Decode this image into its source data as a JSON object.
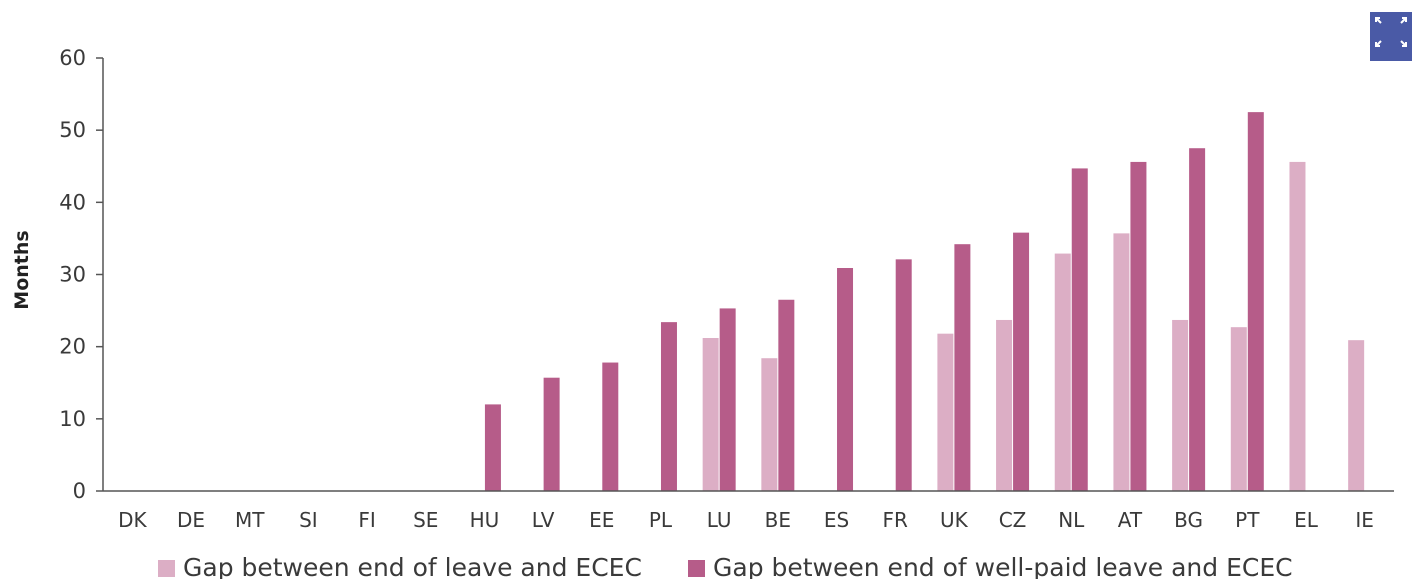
{
  "chart_data": {
    "type": "bar",
    "ylabel": "Months",
    "xlabel": "",
    "ylim": [
      0,
      60
    ],
    "yticks": [
      0,
      10,
      20,
      30,
      40,
      50,
      60
    ],
    "grid": false,
    "legend_position": "bottom",
    "categories": [
      "DK",
      "DE",
      "MT",
      "SI",
      "FI",
      "SE",
      "HU",
      "LV",
      "EE",
      "PL",
      "LU",
      "BE",
      "ES",
      "FR",
      "UK",
      "CZ",
      "NL",
      "AT",
      "BG",
      "PT",
      "EL",
      "IE"
    ],
    "series": [
      {
        "name": "Gap between end of leave and ECEC",
        "color": "#dcaec5",
        "values": [
          0,
          0,
          0,
          0,
          0,
          0,
          0,
          0,
          0,
          0,
          21.2,
          18.4,
          0,
          0,
          21.8,
          23.7,
          32.9,
          35.7,
          23.7,
          22.7,
          45.6,
          20.9
        ]
      },
      {
        "name": "Gap between end of well-paid leave and ECEC",
        "color": "#b65c89",
        "values": [
          0,
          0,
          0,
          0,
          0,
          0,
          12,
          15.7,
          17.8,
          23.4,
          25.3,
          26.5,
          30.9,
          32.1,
          34.2,
          35.8,
          44.7,
          45.6,
          47.5,
          52.5,
          0,
          0
        ]
      }
    ]
  },
  "toolbar": {
    "expand_icon": "expand-icon",
    "accent_color": "#4a5aa6"
  }
}
